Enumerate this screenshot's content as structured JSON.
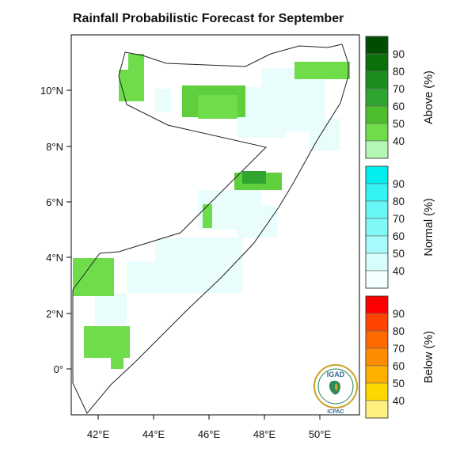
{
  "title": "Rainfall Probabilistic Forecast for September",
  "map": {
    "x_ticks": [
      "42°E",
      "44°E",
      "46°E",
      "48°E",
      "50°E"
    ],
    "y_ticks": [
      "10°N",
      "8°N",
      "6°N",
      "4°N",
      "2°N",
      "0°"
    ],
    "x_tick_values": [
      42,
      44,
      46,
      48,
      50
    ],
    "y_tick_values": [
      10,
      8,
      6,
      4,
      2,
      0
    ],
    "lon_range": [
      41,
      51.2
    ],
    "lat_range": [
      -1.6,
      11.9
    ],
    "legend_position": "right"
  },
  "colorbars": [
    {
      "title": "Above (%)",
      "labels": [
        "90",
        "80",
        "70",
        "60",
        "50",
        "40"
      ],
      "colors": [
        "#004d00",
        "#0b700b",
        "#1e8c1e",
        "#2fa52f",
        "#4dbf2c",
        "#6fdd4a",
        "#b4f7b4"
      ]
    },
    {
      "title": "Normal (%)",
      "labels": [
        "90",
        "80",
        "70",
        "60",
        "50",
        "40"
      ],
      "colors": [
        "#00eeee",
        "#33f3f3",
        "#66f6f6",
        "#80f8f8",
        "#a6fafa",
        "#d6fcfc",
        "#f4ffff"
      ]
    },
    {
      "title": "Below (%)",
      "labels": [
        "90",
        "80",
        "70",
        "60",
        "50",
        "40"
      ],
      "colors": [
        "#ff0000",
        "#ff4500",
        "#ff6a00",
        "#ff8c00",
        "#ffb000",
        "#ffd700",
        "#fff080"
      ]
    }
  ],
  "logo": {
    "top_text": "IGAD",
    "bottom_text": "ICPAC"
  }
}
